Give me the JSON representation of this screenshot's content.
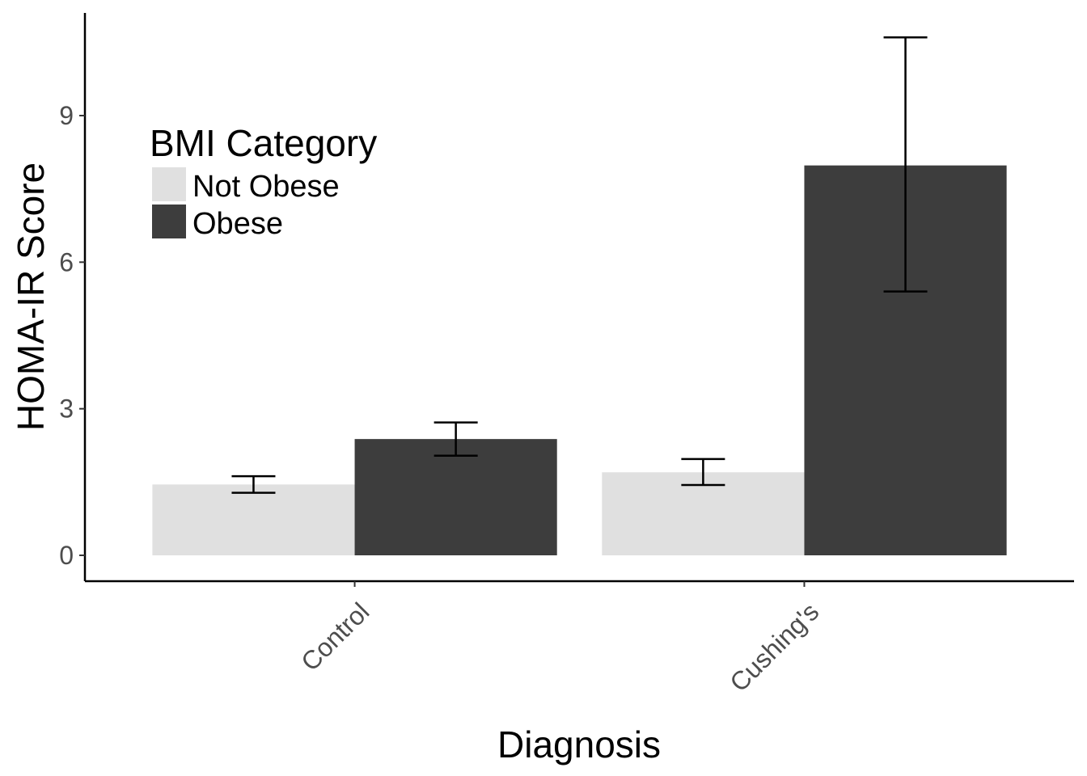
{
  "chart_data": {
    "type": "bar",
    "xlabel": "Diagnosis",
    "ylabel": "HOMA-IR Score",
    "categories": [
      "Control",
      "Cushing's"
    ],
    "yticks": [
      0,
      3,
      6,
      9
    ],
    "ylim": [
      -0.5,
      11.1
    ],
    "grid": false,
    "legend": {
      "title": "BMI Category",
      "position": "top-left (inside plot)"
    },
    "series": [
      {
        "name": "Not Obese",
        "color": "#e0e0e0",
        "values": [
          1.45,
          1.7
        ],
        "error_low": [
          1.28,
          1.44
        ],
        "error_high": [
          1.62,
          1.97
        ]
      },
      {
        "name": "Obese",
        "color": "#3d3d3d",
        "values": [
          2.38,
          7.98
        ],
        "error_low": [
          2.04,
          5.4
        ],
        "error_high": [
          2.72,
          10.6
        ]
      }
    ]
  }
}
